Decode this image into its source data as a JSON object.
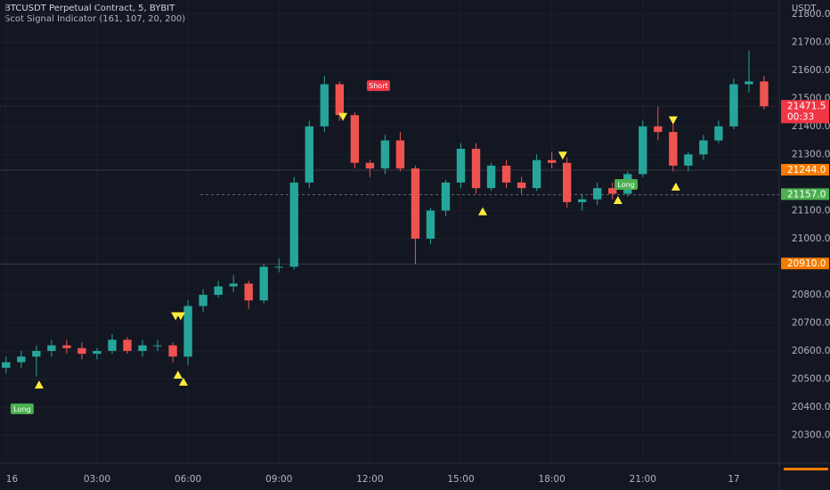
{
  "chart_data": {
    "type": "candlestick",
    "title": "BTCUSDT Perpetual Contract, 5, BYBIT",
    "subtitle": "Scot Signal Indicator (161, 107, 20, 200)",
    "y_axis_label": "USDT",
    "up_color": "#26a69a",
    "down_color": "#ef5350",
    "xlim": [
      -0.2,
      25.5
    ],
    "ylim": [
      20200,
      21850
    ],
    "xticks": [
      {
        "value": 0,
        "label": "16"
      },
      {
        "value": 3,
        "label": "03:00"
      },
      {
        "value": 6,
        "label": "06:00"
      },
      {
        "value": 9,
        "label": "09:00"
      },
      {
        "value": 12,
        "label": "12:00"
      },
      {
        "value": 15,
        "label": "15:00"
      },
      {
        "value": 18,
        "label": "18:00"
      },
      {
        "value": 21,
        "label": "21:00"
      },
      {
        "value": 24,
        "label": "17"
      }
    ],
    "yticks": [
      {
        "value": 20300,
        "label": "20300.0"
      },
      {
        "value": 20400,
        "label": "20400.0"
      },
      {
        "value": 20500,
        "label": "20500.0"
      },
      {
        "value": 20600,
        "label": "20600.0"
      },
      {
        "value": 20700,
        "label": "20700.0"
      },
      {
        "value": 20800,
        "label": "20800.0"
      },
      {
        "value": 21000,
        "label": "21000.0"
      },
      {
        "value": 21100,
        "label": "21100.0"
      },
      {
        "value": 21300,
        "label": "21300.0"
      },
      {
        "value": 21400,
        "label": "21400.0"
      },
      {
        "value": 21500,
        "label": "21500.0"
      },
      {
        "value": 21600,
        "label": "21600.0"
      },
      {
        "value": 21700,
        "label": "21700.0"
      },
      {
        "value": 21800,
        "label": "21800.0"
      }
    ],
    "x": [
      0,
      0.5,
      1,
      1.5,
      2,
      2.5,
      3,
      3.5,
      4,
      4.5,
      5,
      5.5,
      6,
      6.5,
      7,
      7.5,
      8,
      8.5,
      9,
      9.5,
      10,
      10.5,
      11,
      11.5,
      12,
      12.5,
      13,
      13.5,
      14,
      14.5,
      15,
      15.5,
      16,
      16.5,
      17,
      17.5,
      18,
      18.5,
      19,
      19.5,
      20,
      20.5,
      21,
      21.5,
      22,
      22.5,
      23,
      23.5,
      24,
      24.5,
      25
    ],
    "open": [
      20540,
      20560,
      20580,
      20600,
      20620,
      20610,
      20590,
      20600,
      20640,
      20600,
      20620,
      20620,
      20580,
      20760,
      20800,
      20830,
      20840,
      20780,
      20900,
      20900,
      21200,
      21400,
      21550,
      21440,
      21270,
      21250,
      21350,
      21250,
      21000,
      21100,
      21200,
      21320,
      21180,
      21260,
      21200,
      21180,
      21280,
      21270,
      21130,
      21140,
      21180,
      21160,
      21230,
      21400,
      21380,
      21260,
      21300,
      21350,
      21400,
      21550,
      21560
    ],
    "high": [
      20580,
      20600,
      20620,
      20640,
      20640,
      20630,
      20610,
      20660,
      20650,
      20640,
      20640,
      20630,
      20780,
      20820,
      20850,
      20870,
      20850,
      20910,
      20930,
      21220,
      21420,
      21580,
      21560,
      21450,
      21280,
      21370,
      21380,
      21260,
      21110,
      21210,
      21340,
      21340,
      21270,
      21280,
      21220,
      21300,
      21310,
      21290,
      21160,
      21200,
      21200,
      21240,
      21420,
      21470,
      21410,
      21310,
      21370,
      21420,
      21570,
      21670,
      21580
    ],
    "low": [
      20520,
      20540,
      20510,
      20580,
      20590,
      20570,
      20570,
      20590,
      20590,
      20580,
      20600,
      20560,
      20550,
      20740,
      20790,
      20810,
      20750,
      20770,
      20880,
      20890,
      21180,
      21380,
      21420,
      21250,
      21220,
      21230,
      21240,
      20910,
      20980,
      21080,
      21180,
      21160,
      21170,
      21180,
      21160,
      21170,
      21250,
      21110,
      21100,
      21120,
      21140,
      21150,
      21220,
      21350,
      21240,
      21240,
      21280,
      21340,
      21390,
      21520,
      21460
    ],
    "close": [
      20560,
      20580,
      20600,
      20620,
      20610,
      20590,
      20600,
      20640,
      20600,
      20620,
      20620,
      20580,
      20760,
      20800,
      20830,
      20840,
      20780,
      20900,
      20900,
      21200,
      21400,
      21550,
      21440,
      21270,
      21250,
      21350,
      21250,
      21000,
      21100,
      21200,
      21320,
      21180,
      21260,
      21200,
      21180,
      21280,
      21270,
      21130,
      21140,
      21180,
      21160,
      21230,
      21400,
      21380,
      21260,
      21300,
      21350,
      21400,
      21550,
      21560,
      21471.5
    ],
    "marker_color": "#ffeb3b",
    "buy_markers": {
      "x": [
        1.09,
        5.67,
        5.85,
        15.72,
        20.18,
        22.09
      ],
      "y": [
        20479,
        20514,
        20489,
        21096,
        21136,
        21184
      ]
    },
    "sell_markers": {
      "x": [
        5.59,
        5.76,
        11.11,
        18.36,
        22.0
      ],
      "y": [
        20725,
        20725,
        21435,
        21297,
        21423
      ]
    },
    "signal_labels": [
      {
        "text": "Long",
        "x": 0.53,
        "y": 20394,
        "color": "#4caf50"
      },
      {
        "text": "Short",
        "x": 12.28,
        "y": 21545,
        "color": "#f23645"
      },
      {
        "text": "Long",
        "x": 20.45,
        "y": 21193,
        "color": "#4caf50"
      }
    ],
    "price_lines": [
      {
        "value": 21471.5,
        "label": "21471.5",
        "color": "#f23645",
        "countdown": "00:33"
      },
      {
        "value": 21244,
        "label": "21244.0",
        "color": "#f57c00"
      },
      {
        "value": 21157,
        "label": "21157.0",
        "color": "#4caf50"
      },
      {
        "value": 20910,
        "label": "20910.0",
        "color": "#f57c00"
      }
    ]
  }
}
